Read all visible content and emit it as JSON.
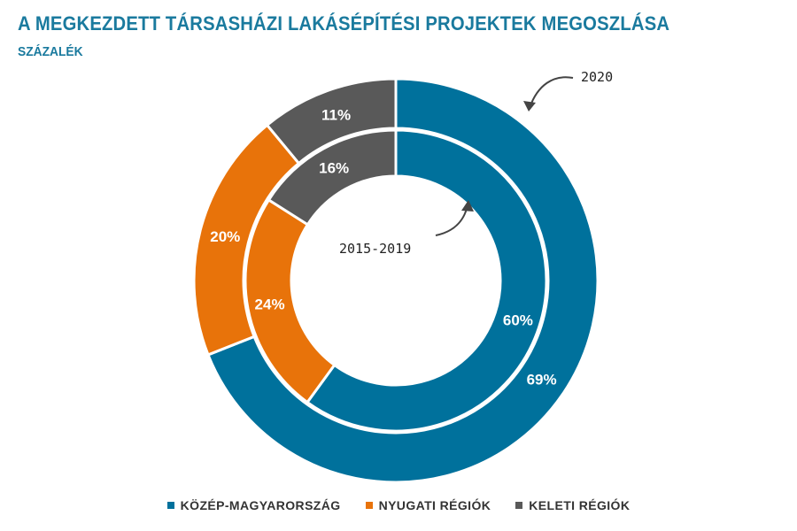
{
  "header": {
    "title": "A MEGKEZDETT TÁRSASHÁZI LAKÁSÉPÍTÉSI PROJEKTEK MEGOSZLÁSA",
    "subtitle": "SZÁZALÉK"
  },
  "chart_data": {
    "type": "pie",
    "subtype": "nested-donut",
    "title": "A MEGKEZDETT TÁRSASHÁZI LAKÁSÉPÍTÉSI PROJEKTEK MEGOSZLÁSA",
    "subtitle": "SZÁZALÉK",
    "categories": [
      "KÖZÉP-MAGYARORSZÁG",
      "NYUGATI RÉGIÓK",
      "KELETI RÉGIÓK"
    ],
    "colors": [
      "#00719c",
      "#e8730a",
      "#595959"
    ],
    "series": [
      {
        "name": "2020",
        "ring": "outer",
        "values": [
          69,
          20,
          11
        ],
        "labels": [
          "69%",
          "20%",
          "11%"
        ]
      },
      {
        "name": "2015-2019",
        "ring": "inner",
        "values": [
          60,
          24,
          16
        ],
        "labels": [
          "60%",
          "24%",
          "16%"
        ]
      }
    ],
    "legend_position": "bottom"
  },
  "legend": {
    "items": [
      {
        "label": "KÖZÉP-MAGYARORSZÁG",
        "color": "#00719c"
      },
      {
        "label": "NYUGATI RÉGIÓK",
        "color": "#e8730a"
      },
      {
        "label": "KELETI RÉGIÓK",
        "color": "#595959"
      }
    ]
  }
}
